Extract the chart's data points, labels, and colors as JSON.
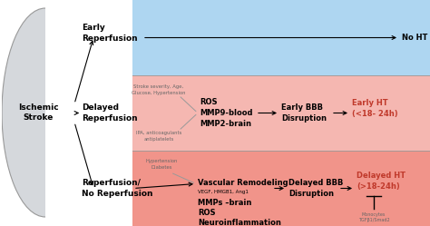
{
  "fig_width": 4.74,
  "fig_height": 2.49,
  "dpi": 100,
  "bg_color": "#ffffff",
  "row1_color": "#aed6f1",
  "row2_color": "#f5b7b1",
  "row3_color": "#f1948a",
  "ellipse_color": "#d5d8dc",
  "row_labels": [
    "Early\nReperfusion",
    "Delayed\nReperfusion",
    "Reperfusion/\nNo Reperfusion"
  ],
  "left_label": "Ischemic\nStroke",
  "row1_end": "No HT",
  "row2_box1": "ROS\nMMP9-blood\nMMP2-brain",
  "row2_box2": "Early BBB\nDisruption",
  "row2_end": "Early HT\n(<18- 24h)",
  "row2_note_top": "Stroke severity, Age,\nGlucose, Hypertension",
  "row2_note_bot": "IPA, anticoagulants\nantiplatelets",
  "row3_box1_line1": "Vascular Remodeling",
  "row3_box1_line2": "VEGF, HMGB1, Ang1",
  "row3_box1_line3": "MMPs –brain",
  "row3_box1_line4": "ROS",
  "row3_box1_line5": "Neuroinflammation",
  "row3_box2": "Delayed BBB\nDisruption",
  "row3_end": "Delayed HT\n(>18-24h)",
  "row3_note_top": "Hypertension\nDiabetes",
  "row3_note_bot": "Monocytes\nTGFβ1/Smad2",
  "black": "#000000",
  "red": "#c0392b",
  "gray_text": "#666666",
  "border_color": "#999999"
}
